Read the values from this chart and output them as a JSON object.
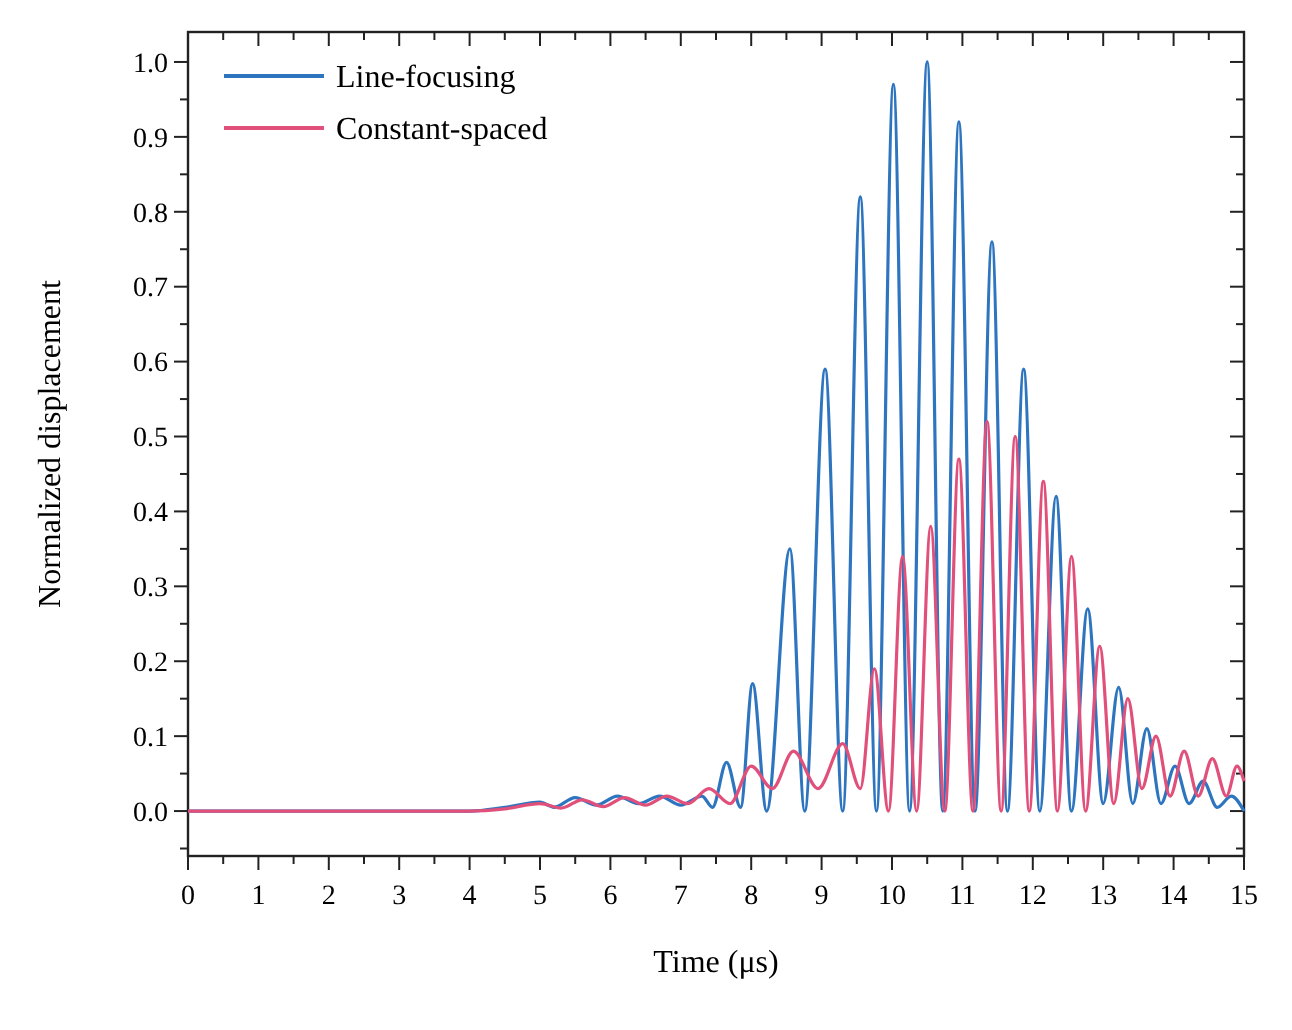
{
  "chart_data": {
    "type": "line",
    "xlabel": "Time (μs)",
    "ylabel": "Normalized displacement",
    "xlim": [
      0,
      15
    ],
    "ylim": [
      -0.06,
      1.04
    ],
    "xticks": [
      0,
      {
        "value": 0.5,
        "label": null
      },
      1,
      {
        "value": 1.5,
        "label": null
      },
      2,
      {
        "value": 2.5,
        "label": null
      },
      3,
      {
        "value": 3.5,
        "label": null
      },
      4,
      {
        "value": 4.5,
        "label": null
      },
      5,
      {
        "value": 5.5,
        "label": null
      },
      6,
      {
        "value": 6.5,
        "label": null
      },
      7,
      {
        "value": 7.5,
        "label": null
      },
      8,
      {
        "value": 8.5,
        "label": null
      },
      9,
      {
        "value": 9.5,
        "label": null
      },
      10,
      {
        "value": 10.5,
        "label": null
      },
      11,
      {
        "value": 11.5,
        "label": null
      },
      12,
      {
        "value": 12.5,
        "label": null
      },
      13,
      {
        "value": 13.5,
        "label": null
      },
      14,
      {
        "value": 14.5,
        "label": null
      },
      15
    ],
    "yticks": [
      {
        "value": -0.05,
        "label": null
      },
      {
        "value": 0,
        "label": "0.0"
      },
      {
        "value": 0.05,
        "label": null
      },
      0.1,
      {
        "value": 0.15,
        "label": null
      },
      0.2,
      {
        "value": 0.25,
        "label": null
      },
      0.3,
      {
        "value": 0.35,
        "label": null
      },
      0.4,
      {
        "value": 0.45,
        "label": null
      },
      0.5,
      {
        "value": 0.55,
        "label": null
      },
      0.6,
      {
        "value": 0.65,
        "label": null
      },
      0.7,
      {
        "value": 0.75,
        "label": null
      },
      0.8,
      {
        "value": 0.85,
        "label": null
      },
      0.9,
      {
        "value": 0.95,
        "label": null
      },
      {
        "value": 1,
        "label": "1.0"
      }
    ],
    "grid": false,
    "legend": "top left",
    "marker": "none",
    "line_style": "solid",
    "series": [
      {
        "name": "Line-focusing",
        "color": "#2e75c0",
        "x": [
          0,
          4,
          4.5,
          5,
          5.2,
          5.5,
          5.8,
          6.1,
          6.4,
          6.7,
          7,
          7.3,
          7.45,
          7.65,
          7.85,
          8.02,
          8.22,
          8.55,
          8.76,
          9.05,
          9.3,
          9.55,
          9.78,
          10.02,
          10.25,
          10.5,
          10.72,
          10.95,
          11.18,
          11.42,
          11.64,
          11.87,
          12.1,
          12.33,
          12.55,
          12.78,
          13,
          13.22,
          13.42,
          13.62,
          13.82,
          14.02,
          14.22,
          14.42,
          14.62,
          14.82,
          15
        ],
        "values": [
          0,
          0,
          0.005,
          0.012,
          0.005,
          0.018,
          0.008,
          0.02,
          0.01,
          0.02,
          0.008,
          0.02,
          0.005,
          0.065,
          0.005,
          0.17,
          0,
          0.35,
          0,
          0.59,
          0,
          0.82,
          0,
          0.97,
          0,
          1.0,
          0,
          0.92,
          0,
          0.76,
          0,
          0.59,
          0,
          0.42,
          0,
          0.27,
          0.01,
          0.165,
          0.01,
          0.11,
          0.01,
          0.06,
          0.01,
          0.04,
          0.005,
          0.02,
          0
        ]
      },
      {
        "name": "Constant-spaced",
        "color": "#e0507a",
        "x": [
          0,
          4,
          4.5,
          5,
          5.3,
          5.6,
          5.9,
          6.2,
          6.5,
          6.8,
          7.1,
          7.4,
          7.7,
          8,
          8.3,
          8.6,
          8.95,
          9.3,
          9.55,
          9.75,
          9.95,
          10.15,
          10.35,
          10.55,
          10.75,
          10.95,
          11.15,
          11.35,
          11.55,
          11.75,
          11.95,
          12.15,
          12.35,
          12.55,
          12.75,
          12.95,
          13.15,
          13.35,
          13.55,
          13.75,
          13.95,
          14.15,
          14.35,
          14.55,
          14.75,
          14.9,
          15
        ],
        "values": [
          0,
          0,
          0.003,
          0.01,
          0.004,
          0.015,
          0.006,
          0.018,
          0.008,
          0.02,
          0.01,
          0.03,
          0.01,
          0.06,
          0.03,
          0.08,
          0.03,
          0.09,
          0.03,
          0.19,
          0,
          0.34,
          0,
          0.38,
          0,
          0.47,
          0,
          0.52,
          0,
          0.5,
          0,
          0.44,
          0,
          0.34,
          0,
          0.22,
          0.01,
          0.15,
          0.03,
          0.1,
          0.02,
          0.08,
          0.02,
          0.07,
          0.02,
          0.06,
          0.04
        ]
      }
    ]
  }
}
